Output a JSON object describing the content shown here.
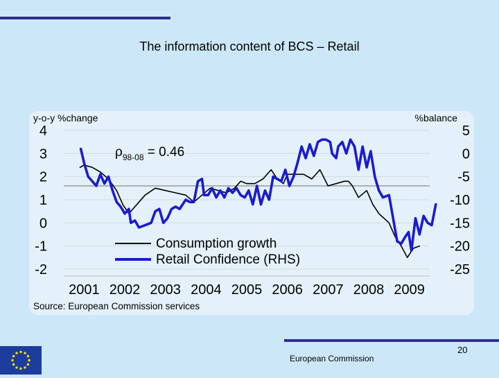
{
  "slide": {
    "title": "The information content of BCS – Retail",
    "footer_org": "European Commission",
    "page_number": "20"
  },
  "colors": {
    "slide_bg": "#cce8f8",
    "chart_bg": "#e4f1fa",
    "rule": "#2f2f8a",
    "consumption": "#000000",
    "retail": "#1b1bd0",
    "reference": "#9a9a9a",
    "eu_blue": "#1d3d9c",
    "eu_star": "#ffdd00"
  },
  "logo": {
    "icon": "eu-flag-icon"
  },
  "chart_data": {
    "type": "line",
    "left_axis_title": "y-o-y %change",
    "right_axis_title": "%balance",
    "left_ticks": [
      "4",
      "3",
      "2",
      "1",
      "0",
      "-1",
      "-2"
    ],
    "right_ticks": [
      "5",
      "0",
      "-5",
      "-10",
      "-15",
      "-20",
      "-25"
    ],
    "x_ticks": [
      "2001",
      "2002",
      "2003",
      "2004",
      "2005",
      "2006",
      "2007",
      "2008",
      "2009"
    ],
    "left_range": [
      -2,
      4
    ],
    "right_range": [
      -25,
      5
    ],
    "x_range": [
      2000.5,
      2009.5
    ],
    "reference_level": 1.6,
    "annotation": {
      "symbol": "ρ",
      "subscript": "98-08",
      "text": " = 0.46"
    },
    "source": "Source: European Commission services",
    "legend_placement": "bottom-center",
    "series": [
      {
        "name": "Consumption growth",
        "axis": "left",
        "points": [
          [
            2000.9,
            2.4
          ],
          [
            2001.0,
            2.5
          ],
          [
            2001.2,
            2.4
          ],
          [
            2001.4,
            2.2
          ],
          [
            2001.6,
            1.9
          ],
          [
            2001.8,
            1.4
          ],
          [
            2001.95,
            0.8
          ],
          [
            2002.1,
            0.4
          ],
          [
            2002.3,
            0.8
          ],
          [
            2002.5,
            1.2
          ],
          [
            2002.75,
            1.5
          ],
          [
            2003.0,
            1.4
          ],
          [
            2003.25,
            1.3
          ],
          [
            2003.5,
            1.2
          ],
          [
            2003.7,
            0.9
          ],
          [
            2003.9,
            1.2
          ],
          [
            2004.1,
            1.5
          ],
          [
            2004.3,
            1.4
          ],
          [
            2004.5,
            1.3
          ],
          [
            2004.7,
            1.5
          ],
          [
            2004.85,
            1.8
          ],
          [
            2005.0,
            1.7
          ],
          [
            2005.2,
            1.7
          ],
          [
            2005.4,
            1.9
          ],
          [
            2005.6,
            2.3
          ],
          [
            2005.75,
            1.9
          ],
          [
            2005.9,
            1.7
          ],
          [
            2006.0,
            2.1
          ],
          [
            2006.2,
            2.1
          ],
          [
            2006.4,
            2.1
          ],
          [
            2006.6,
            1.9
          ],
          [
            2006.75,
            2.2
          ],
          [
            2006.8,
            2.3
          ],
          [
            2007.0,
            1.6
          ],
          [
            2007.2,
            1.7
          ],
          [
            2007.4,
            1.8
          ],
          [
            2007.5,
            1.8
          ],
          [
            2007.6,
            1.6
          ],
          [
            2007.75,
            1.1
          ],
          [
            2007.95,
            1.4
          ],
          [
            2008.1,
            0.8
          ],
          [
            2008.25,
            0.4
          ],
          [
            2008.5,
            0.0
          ],
          [
            2008.65,
            -0.6
          ],
          [
            2008.8,
            -1.0
          ],
          [
            2008.95,
            -1.5
          ],
          [
            2009.1,
            -1.1
          ],
          [
            2009.25,
            -1.0
          ]
        ]
      },
      {
        "name": "Retail Confidence (RHS)",
        "axis": "right",
        "points": [
          [
            2000.92,
            1.0
          ],
          [
            2001.0,
            -2.0
          ],
          [
            2001.1,
            -5.0
          ],
          [
            2001.2,
            -6.0
          ],
          [
            2001.3,
            -7.0
          ],
          [
            2001.4,
            -4.5
          ],
          [
            2001.5,
            -6.5
          ],
          [
            2001.6,
            -5.0
          ],
          [
            2001.7,
            -8.0
          ],
          [
            2001.8,
            -10.5
          ],
          [
            2001.9,
            -11.5
          ],
          [
            2002.0,
            -13.0
          ],
          [
            2002.1,
            -12.0
          ],
          [
            2002.15,
            -15.0
          ],
          [
            2002.25,
            -14.5
          ],
          [
            2002.35,
            -16.0
          ],
          [
            2002.5,
            -15.5
          ],
          [
            2002.65,
            -15.0
          ],
          [
            2002.75,
            -12.5
          ],
          [
            2002.85,
            -12.0
          ],
          [
            2002.95,
            -15.0
          ],
          [
            2003.05,
            -14.0
          ],
          [
            2003.15,
            -12.0
          ],
          [
            2003.25,
            -11.5
          ],
          [
            2003.35,
            -12.0
          ],
          [
            2003.5,
            -10.0
          ],
          [
            2003.6,
            -10.5
          ],
          [
            2003.7,
            -10.5
          ],
          [
            2003.8,
            -6.0
          ],
          [
            2003.9,
            -5.5
          ],
          [
            2003.95,
            -9.0
          ],
          [
            2004.05,
            -9.0
          ],
          [
            2004.15,
            -7.5
          ],
          [
            2004.25,
            -9.5
          ],
          [
            2004.35,
            -8.0
          ],
          [
            2004.45,
            -9.5
          ],
          [
            2004.55,
            -7.5
          ],
          [
            2004.65,
            -8.5
          ],
          [
            2004.75,
            -7.5
          ],
          [
            2004.85,
            -9.0
          ],
          [
            2004.95,
            -9.5
          ],
          [
            2005.05,
            -8.0
          ],
          [
            2005.15,
            -11.0
          ],
          [
            2005.25,
            -7.0
          ],
          [
            2005.35,
            -11.0
          ],
          [
            2005.45,
            -8.0
          ],
          [
            2005.55,
            -10.0
          ],
          [
            2005.65,
            -5.0
          ],
          [
            2005.75,
            -5.5
          ],
          [
            2005.85,
            -6.0
          ],
          [
            2005.95,
            -3.5
          ],
          [
            2006.05,
            -7.0
          ],
          [
            2006.15,
            -5.0
          ],
          [
            2006.25,
            -2.0
          ],
          [
            2006.35,
            1.5
          ],
          [
            2006.45,
            -1.0
          ],
          [
            2006.55,
            2.0
          ],
          [
            2006.65,
            -0.5
          ],
          [
            2006.75,
            2.5
          ],
          [
            2006.85,
            3.0
          ],
          [
            2006.95,
            3.0
          ],
          [
            2007.05,
            2.5
          ],
          [
            2007.1,
            0.0
          ],
          [
            2007.2,
            -1.0
          ],
          [
            2007.25,
            1.5
          ],
          [
            2007.35,
            2.5
          ],
          [
            2007.45,
            0.0
          ],
          [
            2007.55,
            3.0
          ],
          [
            2007.65,
            1.5
          ],
          [
            2007.75,
            -3.5
          ],
          [
            2007.85,
            1.5
          ],
          [
            2007.95,
            -3.0
          ],
          [
            2008.05,
            0.5
          ],
          [
            2008.15,
            -5.0
          ],
          [
            2008.25,
            -8.0
          ],
          [
            2008.35,
            -9.5
          ],
          [
            2008.5,
            -9.0
          ],
          [
            2008.6,
            -14.0
          ],
          [
            2008.7,
            -19.0
          ],
          [
            2008.8,
            -19.5
          ],
          [
            2008.9,
            -18.0
          ],
          [
            2008.98,
            -17.0
          ],
          [
            2009.05,
            -21.0
          ],
          [
            2009.15,
            -14.0
          ],
          [
            2009.25,
            -17.5
          ],
          [
            2009.35,
            -13.5
          ],
          [
            2009.45,
            -15.0
          ],
          [
            2009.55,
            -15.5
          ],
          [
            2009.65,
            -11.0
          ]
        ]
      }
    ]
  }
}
